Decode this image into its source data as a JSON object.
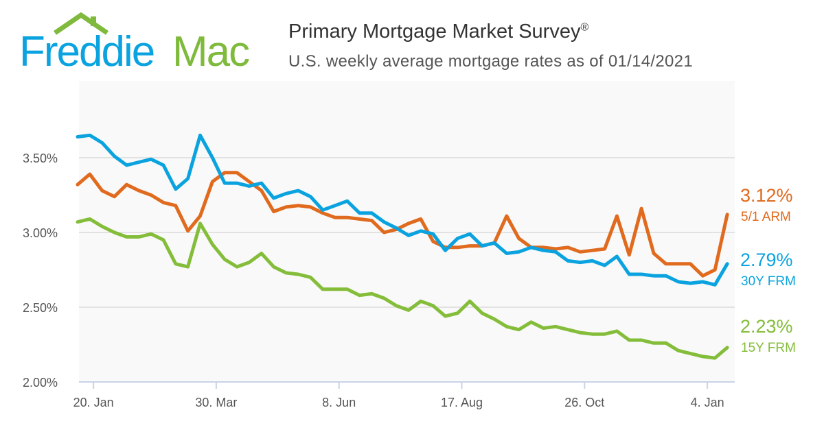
{
  "logo": {
    "text_part1": "Freddie",
    "text_part2": "Mac",
    "color_blue": "#0aa3df",
    "color_green": "#7fba3c"
  },
  "header": {
    "title": "Primary Mortgage Market Survey",
    "title_mark": "®",
    "subtitle": "U.S. weekly average mortgage rates as of 01/14/2021"
  },
  "chart_data": {
    "type": "line",
    "title": "Primary Mortgage Market Survey",
    "subtitle": "U.S. weekly average mortgage rates as of 01/14/2021",
    "x_start": "2020-01-09",
    "x_interval": "weekly",
    "x_tick_labels": [
      "20. Jan",
      "30. Mar",
      "8. Jun",
      "17. Aug",
      "26. Oct",
      "4. Jan"
    ],
    "x_tick_dates": [
      "2020-01-20",
      "2020-03-30",
      "2020-06-08",
      "2020-08-17",
      "2020-10-26",
      "2021-01-04"
    ],
    "y_ticks": [
      2.0,
      2.5,
      3.0,
      3.5
    ],
    "y_tick_labels": [
      "2.00%",
      "2.50%",
      "3.00%",
      "3.50%"
    ],
    "ylim": [
      2.0,
      3.85
    ],
    "grid": true,
    "legend": "right end labels",
    "series": [
      {
        "name": "5/1 ARM",
        "end_label": "3.12%",
        "color": "#e06a1e",
        "values": [
          3.32,
          3.39,
          3.28,
          3.24,
          3.32,
          3.28,
          3.25,
          3.2,
          3.18,
          3.01,
          3.11,
          3.34,
          3.4,
          3.4,
          3.34,
          3.28,
          3.14,
          3.17,
          3.18,
          3.17,
          3.13,
          3.1,
          3.1,
          3.09,
          3.08,
          3.0,
          3.02,
          3.06,
          3.09,
          2.94,
          2.9,
          2.9,
          2.91,
          2.91,
          2.93,
          3.11,
          2.96,
          2.9,
          2.9,
          2.89,
          2.9,
          2.87,
          2.88,
          2.89,
          3.11,
          2.85,
          3.16,
          2.86,
          2.79,
          2.79,
          2.79,
          2.71,
          2.75,
          3.12
        ]
      },
      {
        "name": "30Y FRM",
        "end_label": "2.79%",
        "color": "#0aa3df",
        "values": [
          3.64,
          3.65,
          3.6,
          3.51,
          3.45,
          3.47,
          3.49,
          3.45,
          3.29,
          3.36,
          3.65,
          3.5,
          3.33,
          3.33,
          3.31,
          3.33,
          3.23,
          3.26,
          3.28,
          3.24,
          3.15,
          3.18,
          3.21,
          3.13,
          3.13,
          3.07,
          3.03,
          2.98,
          3.01,
          2.99,
          2.88,
          2.96,
          2.99,
          2.91,
          2.93,
          2.86,
          2.87,
          2.9,
          2.88,
          2.87,
          2.81,
          2.8,
          2.81,
          2.78,
          2.84,
          2.72,
          2.72,
          2.71,
          2.71,
          2.67,
          2.66,
          2.67,
          2.65,
          2.79
        ]
      },
      {
        "name": "15Y FRM",
        "end_label": "2.23%",
        "color": "#84bd3a",
        "values": [
          3.07,
          3.09,
          3.04,
          3.0,
          2.97,
          2.97,
          2.99,
          2.95,
          2.79,
          2.77,
          3.06,
          2.92,
          2.82,
          2.77,
          2.8,
          2.86,
          2.77,
          2.73,
          2.72,
          2.7,
          2.62,
          2.62,
          2.62,
          2.58,
          2.59,
          2.56,
          2.51,
          2.48,
          2.54,
          2.51,
          2.44,
          2.46,
          2.54,
          2.46,
          2.42,
          2.37,
          2.35,
          2.4,
          2.36,
          2.37,
          2.35,
          2.33,
          2.32,
          2.32,
          2.34,
          2.28,
          2.28,
          2.26,
          2.26,
          2.21,
          2.19,
          2.17,
          2.16,
          2.23
        ]
      }
    ]
  }
}
